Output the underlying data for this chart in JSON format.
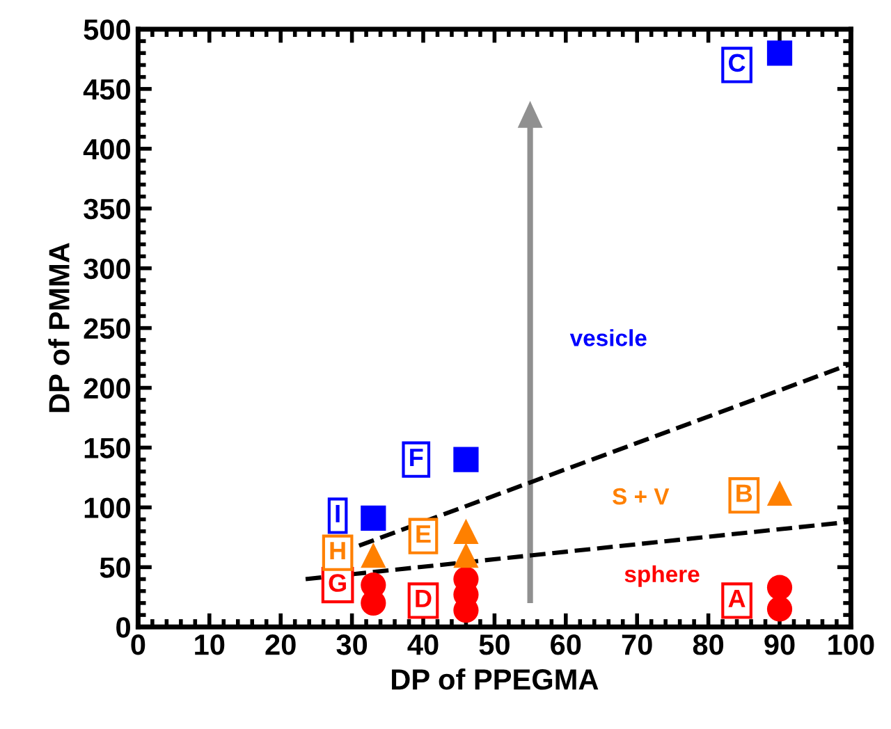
{
  "chart_data": {
    "type": "scatter",
    "xlabel": "DP of PPEGMA",
    "ylabel": "DP of PMMA",
    "xlim": [
      0,
      100
    ],
    "ylim": [
      0,
      500
    ],
    "xticks": [
      0,
      10,
      20,
      30,
      40,
      50,
      60,
      70,
      80,
      90,
      100
    ],
    "yticks": [
      0,
      50,
      100,
      150,
      200,
      250,
      300,
      350,
      400,
      450,
      500
    ],
    "grid": false,
    "series": [
      {
        "name": "sphere",
        "marker": "circle",
        "color": "#ff0000",
        "x": [
          33,
          33,
          46,
          46,
          46,
          90,
          90
        ],
        "values": [
          20,
          35,
          14,
          27,
          40,
          15,
          33
        ]
      },
      {
        "name": "S + V",
        "marker": "triangle",
        "color": "#ff8000",
        "x": [
          33,
          46,
          46,
          90
        ],
        "values": [
          60,
          60,
          80,
          112
        ]
      },
      {
        "name": "vesicle",
        "marker": "square",
        "color": "#0000ff",
        "x": [
          33,
          46,
          90
        ],
        "values": [
          91,
          140,
          480
        ]
      },
      {
        "type": "line",
        "line_style": "dashed",
        "color": "#000000",
        "x": [
          23.5,
          100
        ],
        "values": [
          40,
          88
        ]
      },
      {
        "type": "line",
        "line_style": "dashed",
        "color": "#000000",
        "x": [
          31,
          100
        ],
        "values": [
          68,
          220
        ]
      }
    ],
    "annotations": [
      {
        "text": "A",
        "x": 84,
        "y": 22
      },
      {
        "text": "B",
        "x": 85,
        "y": 110
      },
      {
        "text": "C",
        "x": 84,
        "y": 470
      },
      {
        "text": "D",
        "x": 40,
        "y": 22
      },
      {
        "text": "E",
        "x": 40,
        "y": 76
      },
      {
        "text": "F",
        "x": 39,
        "y": 140
      },
      {
        "text": "G",
        "x": 28,
        "y": 35
      },
      {
        "text": "H",
        "x": 28,
        "y": 62
      },
      {
        "text": "I",
        "x": 28,
        "y": 93
      }
    ]
  }
}
